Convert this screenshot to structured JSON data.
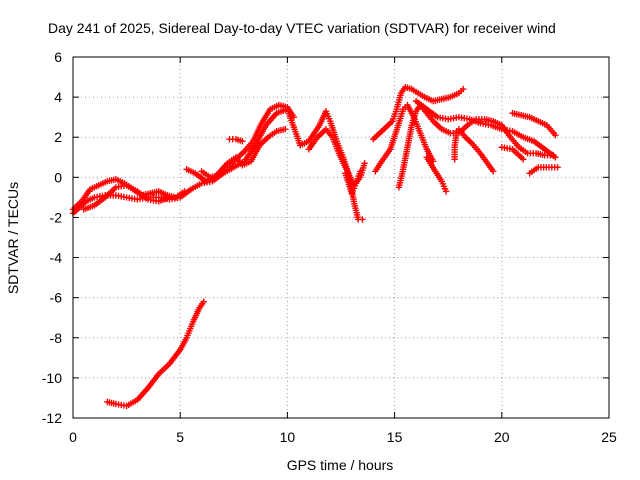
{
  "chart_data": {
    "type": "scatter",
    "title": "Day 241 of 2025, Sidereal Day-to-day VTEC variation (SDTVAR) for receiver wind",
    "xlabel": "GPS time / hours",
    "ylabel": "SDTVAR / TECUs",
    "xlim": [
      0,
      25
    ],
    "ylim": [
      -12,
      6
    ],
    "xticks": [
      0,
      5,
      10,
      15,
      20,
      25
    ],
    "yticks": [
      -12,
      -10,
      -8,
      -6,
      -4,
      -2,
      0,
      2,
      4,
      6
    ],
    "grid": true,
    "marker": "plus",
    "color": "#ff0000",
    "series": [
      {
        "name": "track-1",
        "points": [
          [
            0.0,
            -1.8
          ],
          [
            0.3,
            -1.5
          ],
          [
            0.6,
            -1.2
          ],
          [
            1.0,
            -1.0
          ],
          [
            1.5,
            -0.9
          ],
          [
            2.0,
            -0.9
          ],
          [
            2.5,
            -1.0
          ],
          [
            3.0,
            -1.1
          ],
          [
            3.5,
            -1.0
          ],
          [
            4.0,
            -1.0
          ],
          [
            4.5,
            -1.1
          ],
          [
            5.0,
            -1.0
          ],
          [
            5.5,
            -0.6
          ],
          [
            6.0,
            -0.3
          ],
          [
            6.5,
            -0.2
          ],
          [
            7.0,
            0.2
          ],
          [
            7.5,
            0.5
          ],
          [
            8.0,
            0.8
          ],
          [
            8.5,
            1.6
          ],
          [
            9.0,
            2.6
          ],
          [
            9.5,
            3.2
          ],
          [
            10.0,
            3.4
          ],
          [
            10.3,
            2.5
          ],
          [
            10.6,
            1.6
          ],
          [
            11.0,
            1.8
          ],
          [
            11.5,
            2.6
          ],
          [
            11.8,
            3.3
          ],
          [
            12.0,
            2.8
          ],
          [
            12.3,
            1.8
          ],
          [
            12.6,
            1.0
          ],
          [
            12.9,
            0.0
          ],
          [
            13.1,
            -1.2
          ],
          [
            13.3,
            -2.1
          ],
          [
            13.5,
            -2.1
          ]
        ]
      },
      {
        "name": "track-2",
        "points": [
          [
            0.0,
            -1.6
          ],
          [
            0.4,
            -1.2
          ],
          [
            0.8,
            -0.6
          ],
          [
            1.2,
            -0.4
          ],
          [
            1.6,
            -0.2
          ],
          [
            2.0,
            -0.1
          ],
          [
            2.4,
            -0.3
          ],
          [
            2.8,
            -0.6
          ],
          [
            3.2,
            -0.9
          ],
          [
            3.6,
            -0.8
          ],
          [
            4.0,
            -0.7
          ],
          [
            4.4,
            -0.9
          ],
          [
            4.8,
            -1.0
          ],
          [
            5.2,
            -0.7
          ]
        ]
      },
      {
        "name": "track-3",
        "points": [
          [
            0.5,
            -1.6
          ],
          [
            1.0,
            -1.4
          ],
          [
            1.5,
            -1.0
          ],
          [
            2.0,
            -0.5
          ],
          [
            2.5,
            -0.4
          ],
          [
            3.0,
            -0.7
          ],
          [
            3.5,
            -1.1
          ],
          [
            4.0,
            -1.2
          ],
          [
            4.5,
            -1.0
          ]
        ]
      },
      {
        "name": "track-4",
        "points": [
          [
            5.3,
            0.4
          ],
          [
            5.7,
            0.2
          ],
          [
            6.2,
            -0.2
          ],
          [
            6.7,
            0.1
          ],
          [
            7.2,
            0.7
          ],
          [
            7.6,
            1.0
          ],
          [
            7.9,
            0.6
          ],
          [
            8.3,
            0.8
          ],
          [
            8.7,
            1.6
          ],
          [
            9.1,
            2.0
          ],
          [
            9.5,
            2.3
          ],
          [
            9.9,
            2.4
          ]
        ]
      },
      {
        "name": "track-5",
        "points": [
          [
            7.3,
            1.9
          ],
          [
            7.6,
            1.9
          ],
          [
            7.9,
            1.8
          ]
        ]
      },
      {
        "name": "track-6",
        "points": [
          [
            6.0,
            0.3
          ],
          [
            6.4,
            0.0
          ],
          [
            6.8,
            0.1
          ],
          [
            7.2,
            0.4
          ],
          [
            7.6,
            0.9
          ],
          [
            8.0,
            1.3
          ],
          [
            8.4,
            1.8
          ],
          [
            8.8,
            2.7
          ],
          [
            9.2,
            3.4
          ],
          [
            9.6,
            3.6
          ],
          [
            10.0,
            3.5
          ],
          [
            10.3,
            3.0
          ]
        ]
      },
      {
        "name": "track-7",
        "points": [
          [
            11.0,
            1.4
          ],
          [
            11.4,
            2.0
          ],
          [
            11.8,
            2.4
          ],
          [
            12.1,
            2.0
          ],
          [
            12.4,
            1.2
          ],
          [
            12.8,
            0.3
          ],
          [
            13.1,
            -0.4
          ],
          [
            13.4,
            0.0
          ],
          [
            13.6,
            0.7
          ]
        ]
      },
      {
        "name": "track-8",
        "points": [
          [
            12.7,
            0.2
          ],
          [
            13.0,
            -0.8
          ],
          [
            13.2,
            -0.3
          ],
          [
            13.4,
            0.3
          ]
        ]
      },
      {
        "name": "track-9",
        "points": [
          [
            14.0,
            1.9
          ],
          [
            14.3,
            2.2
          ],
          [
            14.6,
            2.5
          ],
          [
            14.9,
            2.8
          ],
          [
            15.1,
            3.4
          ],
          [
            15.3,
            4.2
          ],
          [
            15.5,
            4.5
          ],
          [
            15.8,
            4.4
          ],
          [
            16.1,
            4.2
          ],
          [
            16.4,
            4.0
          ],
          [
            16.8,
            3.8
          ],
          [
            17.2,
            3.9
          ],
          [
            17.6,
            4.0
          ],
          [
            18.0,
            4.2
          ],
          [
            18.2,
            4.4
          ]
        ]
      },
      {
        "name": "track-10",
        "points": [
          [
            14.1,
            0.3
          ],
          [
            14.4,
            0.8
          ],
          [
            14.8,
            1.4
          ],
          [
            15.2,
            2.7
          ],
          [
            15.4,
            3.4
          ],
          [
            15.6,
            3.6
          ],
          [
            15.9,
            3.0
          ],
          [
            16.2,
            2.2
          ],
          [
            16.5,
            1.4
          ],
          [
            16.8,
            0.8
          ]
        ]
      },
      {
        "name": "track-11",
        "points": [
          [
            15.2,
            -0.5
          ],
          [
            15.4,
            0.4
          ],
          [
            15.6,
            1.5
          ],
          [
            15.8,
            2.6
          ],
          [
            16.0,
            3.3
          ],
          [
            16.2,
            3.6
          ],
          [
            16.5,
            3.2
          ],
          [
            16.8,
            2.8
          ],
          [
            17.2,
            2.4
          ],
          [
            17.6,
            2.2
          ],
          [
            18.0,
            2.2
          ],
          [
            18.4,
            2.6
          ],
          [
            18.8,
            2.9
          ],
          [
            19.2,
            2.9
          ],
          [
            19.6,
            2.8
          ],
          [
            20.0,
            2.6
          ],
          [
            20.4,
            2.0
          ],
          [
            20.8,
            1.5
          ],
          [
            21.2,
            1.2
          ],
          [
            21.6,
            1.2
          ],
          [
            22.0,
            1.1
          ],
          [
            22.4,
            1.1
          ]
        ]
      },
      {
        "name": "track-12",
        "points": [
          [
            16.5,
            1.0
          ],
          [
            16.9,
            0.3
          ],
          [
            17.2,
            -0.2
          ],
          [
            17.4,
            -0.7
          ]
        ]
      },
      {
        "name": "track-13",
        "points": [
          [
            16.0,
            3.8
          ],
          [
            16.5,
            3.4
          ],
          [
            17.0,
            3.0
          ],
          [
            17.5,
            2.9
          ],
          [
            18.0,
            3.0
          ],
          [
            18.5,
            2.9
          ],
          [
            19.0,
            2.7
          ],
          [
            19.5,
            2.6
          ],
          [
            20.0,
            2.4
          ],
          [
            20.5,
            2.3
          ],
          [
            21.0,
            2.0
          ],
          [
            21.5,
            1.8
          ],
          [
            22.0,
            1.4
          ],
          [
            22.5,
            1.0
          ]
        ]
      },
      {
        "name": "track-14",
        "points": [
          [
            18.0,
            2.4
          ],
          [
            18.3,
            2.0
          ],
          [
            18.6,
            1.7
          ],
          [
            19.0,
            1.2
          ],
          [
            19.4,
            0.6
          ],
          [
            19.6,
            0.3
          ]
        ]
      },
      {
        "name": "track-15",
        "points": [
          [
            17.9,
            2.3
          ],
          [
            17.8,
            1.5
          ],
          [
            17.8,
            0.9
          ]
        ]
      },
      {
        "name": "track-16",
        "points": [
          [
            20.5,
            3.2
          ],
          [
            20.9,
            3.1
          ],
          [
            21.3,
            3.0
          ],
          [
            21.7,
            2.8
          ],
          [
            22.1,
            2.6
          ],
          [
            22.5,
            2.1
          ]
        ]
      },
      {
        "name": "track-17",
        "points": [
          [
            20.0,
            1.5
          ],
          [
            20.5,
            1.4
          ],
          [
            21.0,
            0.9
          ]
        ]
      },
      {
        "name": "track-18",
        "points": [
          [
            21.3,
            0.2
          ],
          [
            21.7,
            0.5
          ],
          [
            22.2,
            0.5
          ],
          [
            22.6,
            0.5
          ]
        ]
      },
      {
        "name": "track-19",
        "points": [
          [
            1.6,
            -11.2
          ],
          [
            2.0,
            -11.3
          ],
          [
            2.5,
            -11.4
          ],
          [
            3.0,
            -11.1
          ],
          [
            3.5,
            -10.5
          ],
          [
            4.0,
            -9.8
          ],
          [
            4.5,
            -9.3
          ],
          [
            5.0,
            -8.6
          ],
          [
            5.3,
            -8.0
          ],
          [
            5.6,
            -7.2
          ],
          [
            5.9,
            -6.5
          ],
          [
            6.1,
            -6.2
          ]
        ]
      }
    ]
  }
}
